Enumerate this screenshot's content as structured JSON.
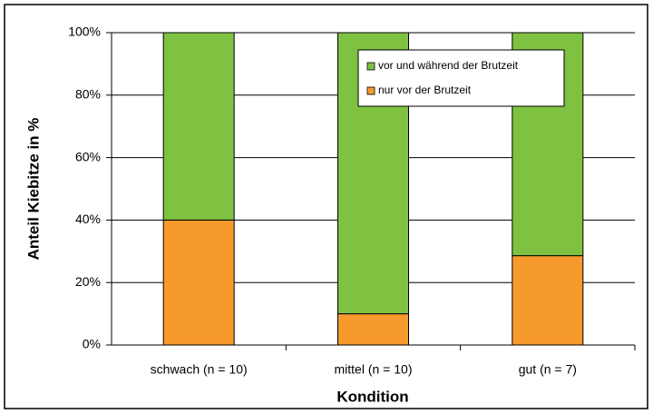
{
  "chart_data": {
    "type": "stacked_bar",
    "categories": [
      "schwach (n = 10)",
      "mittel (n = 10)",
      "gut (n = 7)"
    ],
    "series": [
      {
        "name": "nur vor der Brutzeit",
        "color": "#f79a2e",
        "values": [
          40,
          10,
          28.6
        ]
      },
      {
        "name": "vor und während der Brutzeit",
        "color": "#7fc241",
        "values": [
          60,
          90,
          71.4
        ]
      }
    ],
    "x_label": "Kondition",
    "y_label": "Anteil Kiebitze in %",
    "ylim": [
      0,
      100
    ],
    "yticks": [
      {
        "value": 0,
        "label": "0%"
      },
      {
        "value": 20,
        "label": "20%"
      },
      {
        "value": 40,
        "label": "40%"
      },
      {
        "value": 60,
        "label": "60%"
      },
      {
        "value": 80,
        "label": "80%"
      },
      {
        "value": 100,
        "label": "100%"
      }
    ],
    "grid": true
  }
}
